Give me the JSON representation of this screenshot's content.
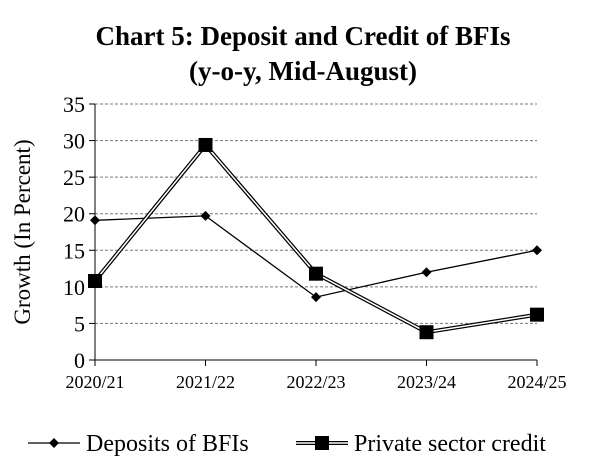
{
  "chart_data": {
    "type": "line",
    "title": "Chart 5:  Deposit and Credit of BFIs",
    "subtitle": "(y-o-y, Mid-August)",
    "xlabel": "",
    "ylabel": "Growth (In Percent)",
    "categories": [
      "2020/21",
      "2021/22",
      "2022/23",
      "2023/24",
      "2024/25"
    ],
    "ylim": [
      0,
      35
    ],
    "yticks": [
      0,
      5,
      10,
      15,
      20,
      25,
      30,
      35
    ],
    "grid": true,
    "legend_position": "bottom",
    "series": [
      {
        "name": "Deposits of BFIs",
        "values": [
          19.1,
          19.7,
          8.6,
          12.0,
          15.0
        ],
        "marker": "diamond",
        "color": "#000000"
      },
      {
        "name": "Private sector credit",
        "values": [
          10.8,
          29.4,
          11.8,
          3.8,
          6.2
        ],
        "marker": "square",
        "color": "#000000"
      }
    ]
  }
}
